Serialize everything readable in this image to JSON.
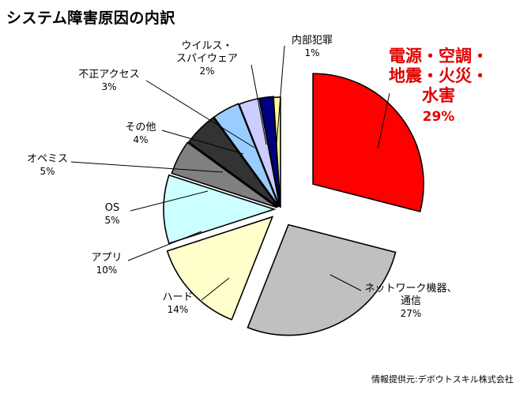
{
  "chart_data": {
    "type": "pie",
    "title": "システム障害原因の内訳",
    "source": "情報提供元:デボウトスキル株式会社",
    "slices": [
      {
        "label": [
          "電源・空調・",
          "地震・火災・",
          "水害"
        ],
        "value": 29,
        "pct": "29%",
        "color": "#ff0000",
        "label_color": "#e00000"
      },
      {
        "label": [
          "ネットワーク機器、",
          "通信"
        ],
        "value": 27,
        "pct": "27%",
        "color": "#c0c0c0",
        "label_color": "#000000"
      },
      {
        "label": [
          "ハード"
        ],
        "value": 14,
        "pct": "14%",
        "color": "#ffffcc",
        "label_color": "#000000"
      },
      {
        "label": [
          "アプリ"
        ],
        "value": 10,
        "pct": "10%",
        "color": "#ccffff",
        "label_color": "#000000"
      },
      {
        "label": [
          "OS"
        ],
        "value": 5,
        "pct": "5%",
        "color": "#808080",
        "label_color": "#000000"
      },
      {
        "label": [
          "オペミス"
        ],
        "value": 5,
        "pct": "5%",
        "color": "#333333",
        "label_color": "#000000"
      },
      {
        "label": [
          "その他"
        ],
        "value": 4,
        "pct": "4%",
        "color": "#99ccff",
        "label_color": "#000000"
      },
      {
        "label": [
          "不正アクセス"
        ],
        "value": 3,
        "pct": "3%",
        "color": "#ccccff",
        "label_color": "#000000"
      },
      {
        "label": [
          "ウイルス・",
          "スパイウェア"
        ],
        "value": 2,
        "pct": "2%",
        "color": "#000080",
        "label_color": "#000000"
      },
      {
        "label": [
          "内部犯罪"
        ],
        "value": 1,
        "pct": "1%",
        "color": "#ffff99",
        "label_color": "#000000"
      }
    ]
  }
}
